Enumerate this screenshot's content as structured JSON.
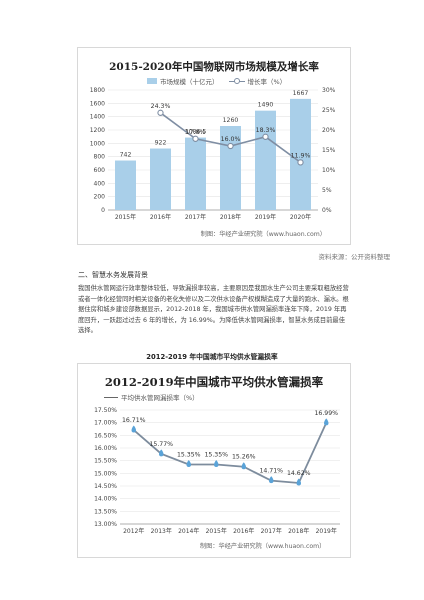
{
  "chart1": {
    "title": "2015-2020年中国物联网市场规模及增长率",
    "legend_bar": "市场规模（十亿元）",
    "legend_line": "增长率（%）",
    "source": "制图：华经产业研究院（www.huaon.com）",
    "left_ticks": [
      "0",
      "200",
      "400",
      "600",
      "800",
      "1000",
      "1200",
      "1400",
      "1600",
      "1800"
    ],
    "right_ticks": [
      "0%",
      "5%",
      "10%",
      "15%",
      "20%",
      "25%",
      "30%"
    ],
    "bar_value_labels": [
      "742",
      "922",
      "1086.5",
      "1260",
      "1490",
      "1667"
    ],
    "growth_labels": [
      "24.3%",
      "17.8%",
      "16.0%",
      "18.3%",
      "11.9%"
    ]
  },
  "chart_data": [
    {
      "type": "bar",
      "title": "2015-2020年中国物联网市场规模及增长率",
      "categories": [
        "2015年",
        "2016年",
        "2017年",
        "2018年",
        "2019年",
        "2020年"
      ],
      "series": [
        {
          "name": "市场规模（十亿元）",
          "values": [
            742,
            922,
            1086.5,
            1260,
            1490,
            1667
          ],
          "axis": "left"
        },
        {
          "name": "增长率（%）",
          "type": "line",
          "x": [
            "2016年",
            "2017年",
            "2018年",
            "2019年",
            "2020年"
          ],
          "values": [
            24.3,
            17.8,
            16.0,
            18.3,
            11.9
          ],
          "axis": "right"
        }
      ],
      "ylim": [
        0,
        1800
      ],
      "y2lim": [
        0,
        30
      ],
      "grid": true,
      "legend": "top"
    },
    {
      "type": "line",
      "title": "2012-2019年中国城市平均供水管漏损率",
      "categories": [
        "2012年",
        "2013年",
        "2014年",
        "2015年",
        "2016年",
        "2017年",
        "2018年",
        "2019年"
      ],
      "series": [
        {
          "name": "平均供水管网漏损率（%）",
          "values": [
            16.71,
            15.77,
            15.35,
            15.35,
            15.26,
            14.71,
            14.62,
            16.99
          ]
        }
      ],
      "ylim": [
        13.0,
        17.5
      ],
      "grid": true,
      "legend": "top-left"
    }
  ],
  "chart2": {
    "title": "2012-2019年中国城市平均供水管漏损率",
    "legend": "平均供水管网漏损率（%）",
    "source": "制图：华经产业研究院（www.huaon.com）",
    "ticks": [
      "13.00%",
      "13.50%",
      "14.00%",
      "14.50%",
      "15.00%",
      "15.50%",
      "16.00%",
      "16.50%",
      "17.00%",
      "17.50%"
    ],
    "value_labels": [
      "16.71%",
      "15.77%",
      "15.35%",
      "15.35%",
      "15.26%",
      "14.71%",
      "14.62%",
      "16.99%"
    ]
  },
  "text": {
    "reference_note": "资料来源：公开资料整理",
    "section_heading": "二、智慧水务发展背景",
    "paragraph1": "我国供水管网运行效率整体较低，导致漏损率较高，主要原因是我国水生产公司主要采取粗放经营或者一体化经营同时相关设备的老化失修以及二次供水设备产权模糊造成了大量的跑水、漏水。根据住房和城乡建设部数据显示，2012-2018 年，我国城市供水管网漏损率连年下降，2019 年再度回升，一跃超过过去 6 年的增长，为 16.99%。为降低供水管网漏损率，智慧水务成目前最佳选择。",
    "paragraph2": "",
    "chart2_caption": "2012-2019 年中国城市平均供水管漏损率"
  }
}
